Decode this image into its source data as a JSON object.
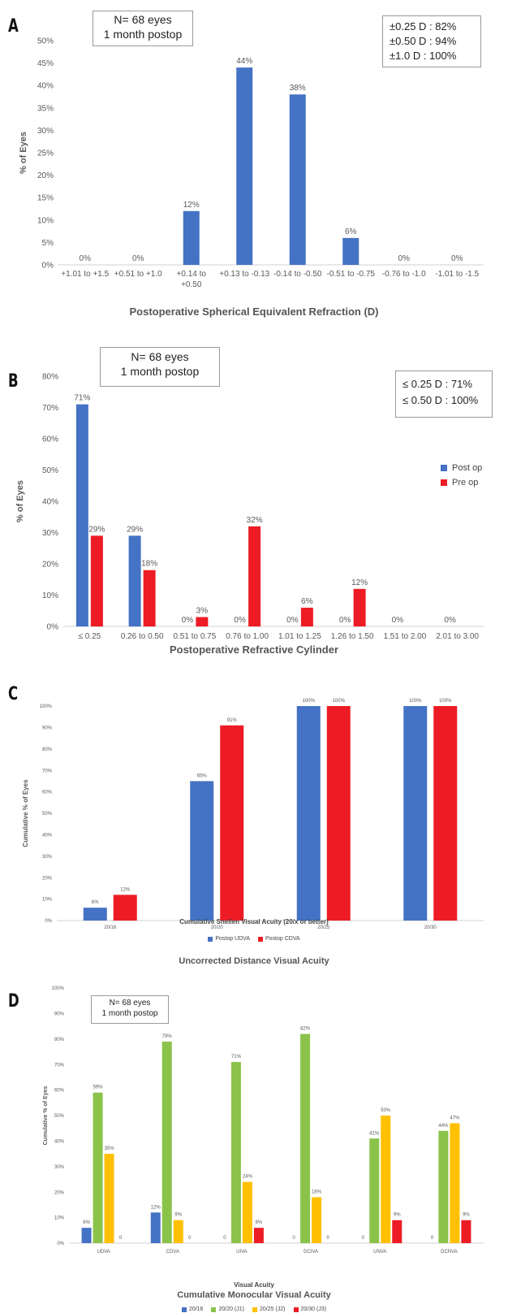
{
  "panels": {
    "A": {
      "label": "A",
      "info_box": [
        "N= 68 eyes",
        "1 month postop"
      ],
      "stats_box": [
        "±0.25 D : 82%",
        "±0.50 D : 94%",
        "±1.0 D :  100%"
      ]
    },
    "B": {
      "label": "B",
      "info_box": [
        "N= 68 eyes",
        "1 month postop"
      ],
      "stats_box": [
        "≤ 0.25 D : 71%",
        "≤ 0.50 D : 100%"
      ]
    },
    "C": {
      "label": "C"
    },
    "D": {
      "label": "D",
      "info_box": [
        "N= 68 eyes",
        "1 month postop"
      ]
    }
  },
  "colors": {
    "blue": "#4472c4",
    "red": "#ed1c24",
    "green": "#8bc34a",
    "yellow": "#ffc000",
    "axis": "#d0d0d0",
    "text": "#595959"
  },
  "chart_data": [
    {
      "type": "bar",
      "categories": [
        "+1.01 to +1.5",
        "+0.51 to +1.0",
        "+0.14 to\n+0.50",
        "+0.13 to -0.13",
        "-0.14 to -0.50",
        "-0.51 to -0.75",
        "-0.76 to -1.0",
        "-1.01 to -1.5"
      ],
      "series": [
        {
          "values": [
            0,
            0,
            12,
            44,
            38,
            6,
            0,
            0
          ],
          "labels": [
            "0%",
            "0%",
            "12%",
            "44%",
            "38%",
            "6%",
            "0%",
            "0%"
          ],
          "color": "#4472c4"
        }
      ],
      "title": "",
      "xlabel": "Postoperative Spherical Equivalent Refraction (D)",
      "ylabel": "% of Eyes",
      "ylim": [
        0,
        50
      ],
      "yticks": [
        "0%",
        "5%",
        "10%",
        "15%",
        "20%",
        "25%",
        "30%",
        "35%",
        "40%",
        "45%",
        "50%"
      ]
    },
    {
      "type": "bar",
      "categories": [
        "≤ 0.25",
        "0.26 to 0.50",
        "0.51 to 0.75",
        "0.76 to 1.00",
        "1.01 to 1.25",
        "1.26 to 1.50",
        "1.51 to 2.00",
        "2.01 to 3.00"
      ],
      "series": [
        {
          "name": "Post op",
          "values": [
            71,
            29,
            0,
            0,
            0,
            0,
            0,
            0
          ],
          "labels": [
            "71%",
            "29%",
            "0%",
            "0%",
            "0%",
            "0%",
            "0%",
            "0%"
          ],
          "color": "#4472c4"
        },
        {
          "name": "Pre op",
          "values": [
            29,
            18,
            3,
            32,
            6,
            12,
            null,
            null
          ],
          "labels": [
            "29%",
            "18%",
            "3%",
            "32%",
            "6%",
            "12%",
            "",
            ""
          ],
          "color": "#ed1c24"
        }
      ],
      "title": "Postoperative Refractive Cylinder",
      "xlabel": "",
      "ylabel": "% of Eyes",
      "ylim": [
        0,
        80
      ],
      "yticks": [
        "0%",
        "10%",
        "20%",
        "30%",
        "40%",
        "50%",
        "60%",
        "70%",
        "80%"
      ],
      "legend": "right"
    },
    {
      "type": "bar",
      "categories": [
        "20/16",
        "20/20",
        "20/25",
        "20/30"
      ],
      "series": [
        {
          "name": "Postop UDVA",
          "values": [
            6,
            65,
            100,
            100
          ],
          "labels": [
            "6%",
            "65%",
            "100%",
            "100%"
          ],
          "color": "#4472c4"
        },
        {
          "name": "Postop CDVA",
          "values": [
            12,
            91,
            100,
            100
          ],
          "labels": [
            "12%",
            "91%",
            "100%",
            "100%"
          ],
          "color": "#ed1c24"
        }
      ],
      "title": "Uncorrected Distance Visual Acuity",
      "xlabel": "Cumulative Snellen Visual Acuity (20/x or better)",
      "ylabel": "Cumulative % of Eyes",
      "ylim": [
        0,
        100
      ],
      "yticks": [
        "0%",
        "10%",
        "20%",
        "30%",
        "40%",
        "50%",
        "60%",
        "70%",
        "80%",
        "90%",
        "100%"
      ],
      "legend": "bottom"
    },
    {
      "type": "bar",
      "categories": [
        "UDVA",
        "CDVA",
        "UIVA",
        "DCIVA",
        "UNVA",
        "DCNVA"
      ],
      "series": [
        {
          "name": "20/16",
          "values": [
            6,
            12,
            0,
            0,
            0,
            0
          ],
          "labels": [
            "6%",
            "12%",
            "0",
            "0",
            "0",
            "0"
          ],
          "color": "#4472c4"
        },
        {
          "name": "20/20 (J1)",
          "values": [
            59,
            79,
            71,
            82,
            41,
            44
          ],
          "labels": [
            "59%",
            "79%",
            "71%",
            "82%",
            "41%",
            "44%"
          ],
          "color": "#8bc34a"
        },
        {
          "name": "20/25 (J2)",
          "values": [
            35,
            9,
            24,
            18,
            50,
            47
          ],
          "labels": [
            "35%",
            "9%",
            "24%",
            "18%",
            "50%",
            "47%"
          ],
          "color": "#ffc000"
        },
        {
          "name": "20/30 (J3)",
          "values": [
            0,
            0,
            6,
            0,
            9,
            9
          ],
          "labels": [
            "0",
            "0",
            "6%",
            "0",
            "9%",
            "9%"
          ],
          "color": "#ed1c24"
        }
      ],
      "title": "Cumulative Monocular Visual Acuity",
      "xlabel": "Visual Acuity",
      "ylabel": "Cumulative % of Eyes",
      "ylim": [
        0,
        100
      ],
      "yticks": [
        "0%",
        "10%",
        "20%",
        "30%",
        "40%",
        "50%",
        "60%",
        "70%",
        "80%",
        "90%",
        "100%"
      ],
      "legend": "bottom"
    }
  ]
}
